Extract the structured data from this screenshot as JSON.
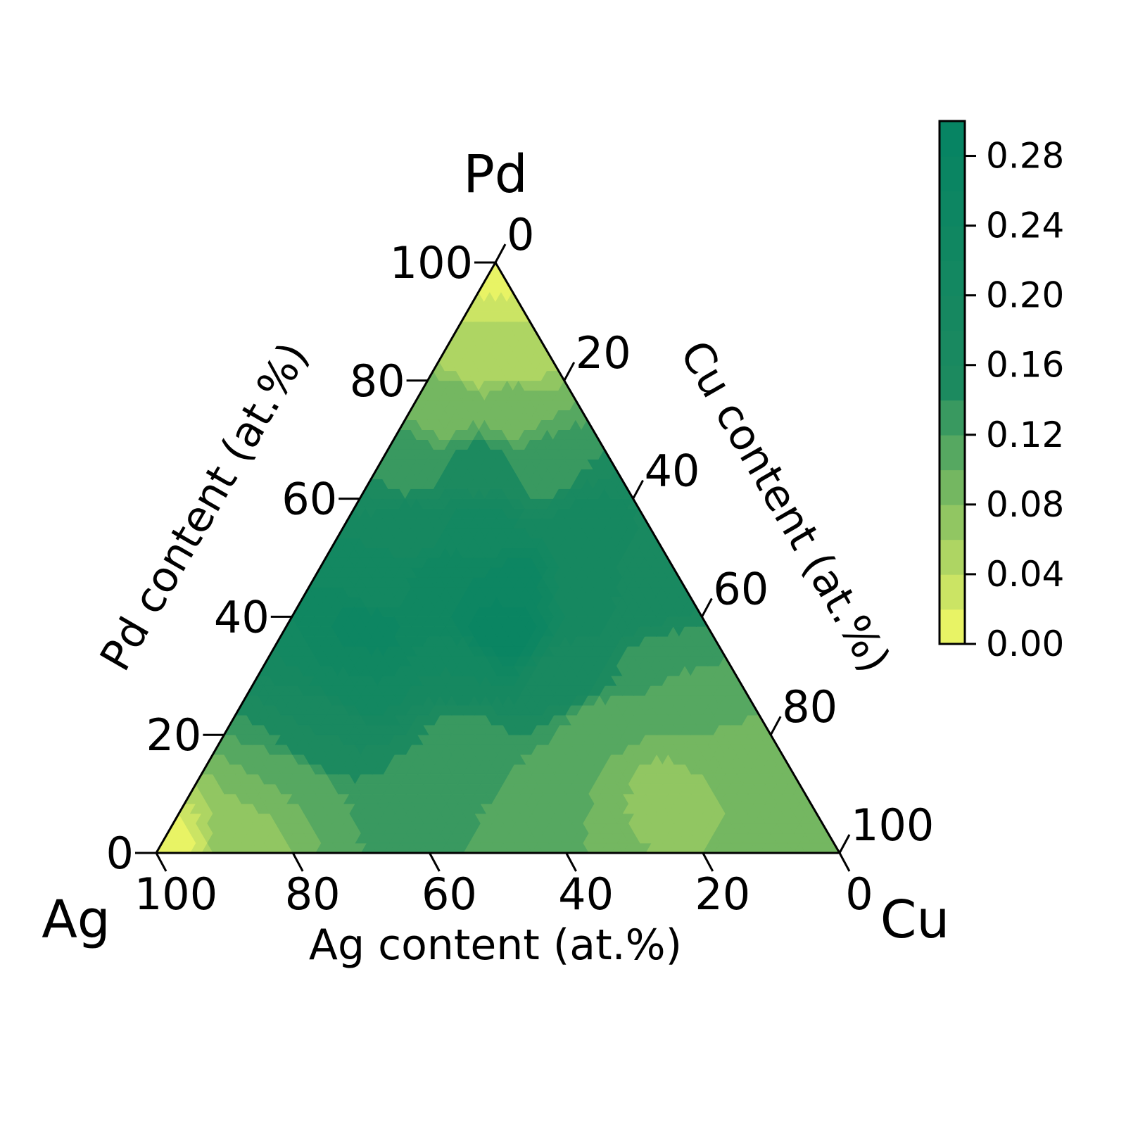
{
  "chart_data": {
    "type": "heatmap",
    "subtype": "ternary-contour",
    "corners": {
      "top": "Pd",
      "left": "Ag",
      "right": "Cu"
    },
    "axes": {
      "bottom": {
        "label": "Ag content (at.%)",
        "ticks": [
          "100",
          "80",
          "60",
          "40",
          "20",
          "0"
        ]
      },
      "left": {
        "label": "Pd content (at.%)",
        "ticks": [
          "0",
          "20",
          "40",
          "60",
          "80",
          "100"
        ]
      },
      "right": {
        "label": "Cu content (at.%)",
        "ticks": [
          "0",
          "20",
          "40",
          "60",
          "80",
          "100"
        ]
      }
    },
    "colorbar": {
      "ticks": [
        "0.00",
        "0.04",
        "0.08",
        "0.12",
        "0.16",
        "0.20",
        "0.24",
        "0.28"
      ],
      "range": [
        0,
        0.3
      ],
      "levels": 15,
      "colormap": [
        "#f7fa65",
        "#1c8a5f",
        "#068463"
      ]
    },
    "grid": false,
    "samples": [
      {
        "ag": 0,
        "pd": 100,
        "cu": 0,
        "v": 0.01
      },
      {
        "ag": 10,
        "pd": 85,
        "cu": 5,
        "v": 0.04
      },
      {
        "ag": 5,
        "pd": 85,
        "cu": 10,
        "v": 0.04
      },
      {
        "ag": 20,
        "pd": 75,
        "cu": 5,
        "v": 0.09
      },
      {
        "ag": 10,
        "pd": 75,
        "cu": 15,
        "v": 0.09
      },
      {
        "ag": 30,
        "pd": 65,
        "cu": 5,
        "v": 0.13
      },
      {
        "ag": 20,
        "pd": 65,
        "cu": 15,
        "v": 0.15
      },
      {
        "ag": 10,
        "pd": 65,
        "cu": 25,
        "v": 0.13
      },
      {
        "ag": 35,
        "pd": 55,
        "cu": 10,
        "v": 0.19
      },
      {
        "ag": 25,
        "pd": 55,
        "cu": 20,
        "v": 0.21
      },
      {
        "ag": 10,
        "pd": 55,
        "cu": 35,
        "v": 0.19
      },
      {
        "ag": 45,
        "pd": 45,
        "cu": 10,
        "v": 0.21
      },
      {
        "ag": 35,
        "pd": 45,
        "cu": 20,
        "v": 0.24
      },
      {
        "ag": 25,
        "pd": 45,
        "cu": 30,
        "v": 0.25
      },
      {
        "ag": 15,
        "pd": 45,
        "cu": 40,
        "v": 0.19
      },
      {
        "ag": 5,
        "pd": 45,
        "cu": 50,
        "v": 0.17
      },
      {
        "ag": 50,
        "pd": 38,
        "cu": 12,
        "v": 0.25
      },
      {
        "ag": 30,
        "pd": 38,
        "cu": 32,
        "v": 0.28
      },
      {
        "ag": 55,
        "pd": 30,
        "cu": 15,
        "v": 0.22
      },
      {
        "ag": 40,
        "pd": 30,
        "cu": 30,
        "v": 0.2
      },
      {
        "ag": 25,
        "pd": 30,
        "cu": 45,
        "v": 0.17
      },
      {
        "ag": 10,
        "pd": 30,
        "cu": 60,
        "v": 0.12
      },
      {
        "ag": 65,
        "pd": 20,
        "cu": 15,
        "v": 0.16
      },
      {
        "ag": 45,
        "pd": 20,
        "cu": 35,
        "v": 0.13
      },
      {
        "ag": 25,
        "pd": 20,
        "cu": 55,
        "v": 0.1
      },
      {
        "ag": 10,
        "pd": 20,
        "cu": 70,
        "v": 0.1
      },
      {
        "ag": 75,
        "pd": 10,
        "cu": 15,
        "v": 0.1
      },
      {
        "ag": 55,
        "pd": 10,
        "cu": 35,
        "v": 0.13
      },
      {
        "ag": 35,
        "pd": 10,
        "cu": 55,
        "v": 0.1
      },
      {
        "ag": 20,
        "pd": 10,
        "cu": 70,
        "v": 0.07
      },
      {
        "ag": 5,
        "pd": 10,
        "cu": 85,
        "v": 0.08
      },
      {
        "ag": 100,
        "pd": 0,
        "cu": 0,
        "v": 0.01
      },
      {
        "ag": 85,
        "pd": 2,
        "cu": 13,
        "v": 0.07
      },
      {
        "ag": 65,
        "pd": 2,
        "cu": 33,
        "v": 0.12
      },
      {
        "ag": 45,
        "pd": 2,
        "cu": 53,
        "v": 0.11
      },
      {
        "ag": 25,
        "pd": 2,
        "cu": 73,
        "v": 0.08
      },
      {
        "ag": 0,
        "pd": 0,
        "cu": 100,
        "v": 0.1
      }
    ]
  }
}
